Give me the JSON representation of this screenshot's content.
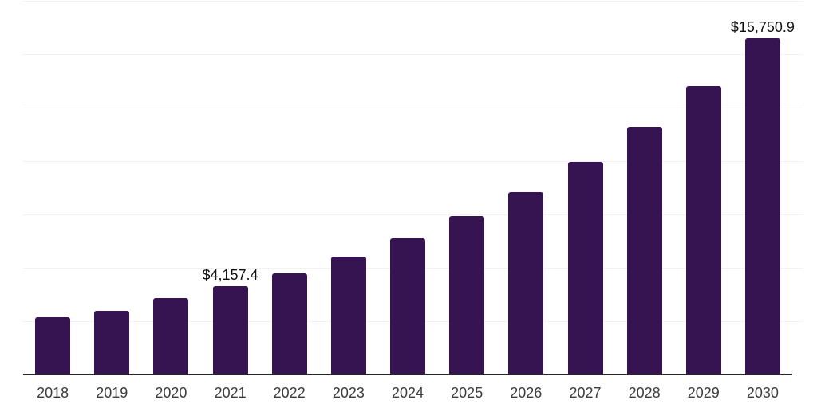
{
  "chart_data": {
    "type": "bar",
    "title": "",
    "xlabel": "",
    "ylabel": "",
    "categories": [
      "2018",
      "2019",
      "2020",
      "2021",
      "2022",
      "2023",
      "2024",
      "2025",
      "2026",
      "2027",
      "2028",
      "2029",
      "2030"
    ],
    "values": [
      2675,
      3005,
      3575,
      4157.4,
      4750,
      5535,
      6370,
      7425,
      8555,
      9950,
      11605,
      13495,
      15750.9
    ],
    "data_labels": [
      "",
      "",
      "",
      "$4,157.4",
      "",
      "",
      "",
      "",
      "",
      "",
      "",
      "",
      "$15,750.9"
    ],
    "ylim": [
      0,
      17500
    ],
    "gridline_interval": 2500,
    "grid": "horizontal",
    "legend": "none",
    "y_tick_labels_visible": false
  },
  "colors": {
    "bar": "#361351",
    "axis_line": "#262626",
    "gridline": "#f2f2f2",
    "tick_label": "#3c3c3c",
    "data_label": "#111111",
    "background": "#ffffff"
  }
}
